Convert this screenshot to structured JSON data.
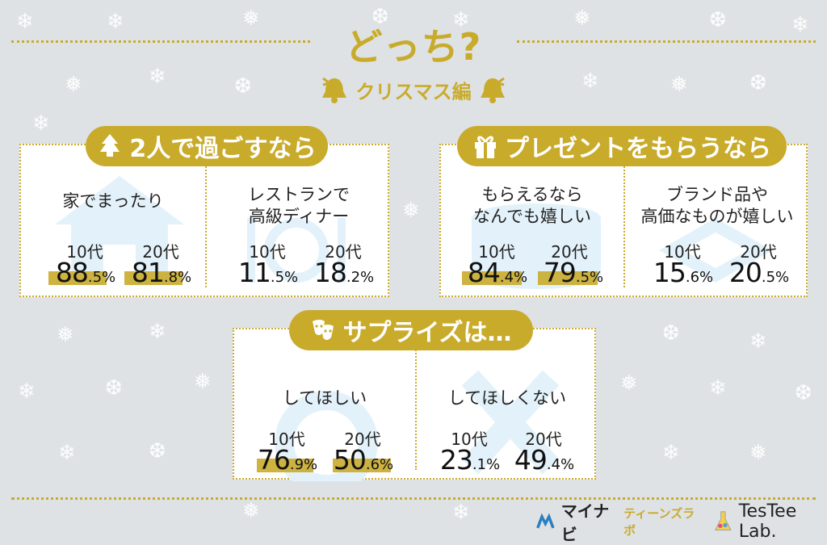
{
  "header": {
    "title": "どっち?",
    "subtitle": "クリスマス編"
  },
  "colors": {
    "accent": "#c9ab2c",
    "background": "#dfe2e5"
  },
  "sections": [
    {
      "label": "2人で過ごすなら",
      "icon": "christmas-tree-icon",
      "options": [
        {
          "question": [
            "家でまったり"
          ],
          "teen_label": "10代",
          "teen_num": "88",
          "teen_dec": ".5%",
          "twenty_label": "20代",
          "twenty_num": "81",
          "twenty_dec": ".8%",
          "teen_value": 88.5,
          "twenty_value": 81.8
        },
        {
          "question": [
            "レストランで",
            "高級ディナー"
          ],
          "teen_label": "10代",
          "teen_num": "11",
          "teen_dec": ".5%",
          "twenty_label": "20代",
          "twenty_num": "18",
          "twenty_dec": ".2%",
          "teen_value": 11.5,
          "twenty_value": 18.2
        }
      ]
    },
    {
      "label": "プレゼントをもらうなら",
      "icon": "gift-icon",
      "options": [
        {
          "question": [
            "もらえるなら",
            "なんでも嬉しい"
          ],
          "teen_label": "10代",
          "teen_num": "84",
          "teen_dec": ".4%",
          "twenty_label": "20代",
          "twenty_num": "79",
          "twenty_dec": ".5%",
          "teen_value": 84.4,
          "twenty_value": 79.5
        },
        {
          "question": [
            "ブランド品や",
            "高価なものが嬉しい"
          ],
          "teen_label": "10代",
          "teen_num": "15",
          "teen_dec": ".6%",
          "twenty_label": "20代",
          "twenty_num": "20",
          "twenty_dec": ".5%",
          "teen_value": 15.6,
          "twenty_value": 20.5
        }
      ]
    },
    {
      "label": "サプライズは…",
      "icon": "theater-masks-icon",
      "options": [
        {
          "question": [
            "してほしい"
          ],
          "teen_label": "10代",
          "teen_num": "76",
          "teen_dec": ".9%",
          "twenty_label": "20代",
          "twenty_num": "50",
          "twenty_dec": ".6%",
          "teen_value": 76.9,
          "twenty_value": 50.6
        },
        {
          "question": [
            "してほしくない"
          ],
          "teen_label": "10代",
          "teen_num": "23",
          "teen_dec": ".1%",
          "twenty_label": "20代",
          "twenty_num": "49",
          "twenty_dec": ".4%",
          "teen_value": 23.1,
          "twenty_value": 49.4
        }
      ]
    }
  ],
  "footer": {
    "brand1": "マイナビ",
    "brand1_sub": "ティーンズラボ",
    "brand2": "TesTee Lab."
  }
}
